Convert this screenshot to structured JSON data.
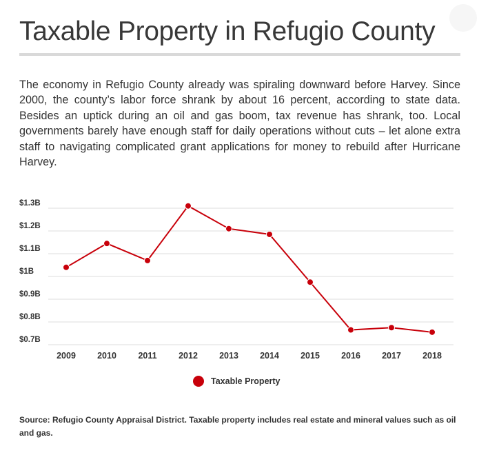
{
  "header": {
    "title": "Taxable Property in Refugio County",
    "description": "The economy in Refugio County already was spiraling downward before Harvey. Since 2000, the county’s labor force shrank by about 16 percent, according to state data. Besides an uptick during an oil and gas boom, tax revenue has shrank, too. Local governments barely have enough staff for daily operations without cuts – let alone extra staff to navigating complicated grant applications for money to rebuild after Hurricane Harvey."
  },
  "chart_data": {
    "type": "line",
    "title": "",
    "xlabel": "",
    "ylabel": "",
    "categories": [
      "2009",
      "2010",
      "2011",
      "2012",
      "2013",
      "2014",
      "2015",
      "2016",
      "2017",
      "2018"
    ],
    "series": [
      {
        "name": "Taxable Property",
        "color": "#c8000a",
        "values": [
          1.04,
          1.145,
          1.07,
          1.31,
          1.21,
          1.185,
          0.975,
          0.765,
          0.775,
          0.755
        ]
      }
    ],
    "y_ticks": [
      {
        "value": 1.3,
        "label": "$1.3B"
      },
      {
        "value": 1.2,
        "label": "$1.2B"
      },
      {
        "value": 1.1,
        "label": "$1.1B"
      },
      {
        "value": 1.0,
        "label": "$1B"
      },
      {
        "value": 0.9,
        "label": "$0.9B"
      },
      {
        "value": 0.8,
        "label": "$0.8B"
      },
      {
        "value": 0.7,
        "label": "$0.7B"
      }
    ],
    "ylim": [
      0.7,
      1.3
    ],
    "grid": true,
    "legend_position": "bottom-center"
  },
  "legend": {
    "label": "Taxable Property",
    "color": "#c8000a"
  },
  "footer": {
    "source": "Source: Refugio County Appraisal District. Taxable property includes real estate and mineral values such as oil and gas."
  }
}
